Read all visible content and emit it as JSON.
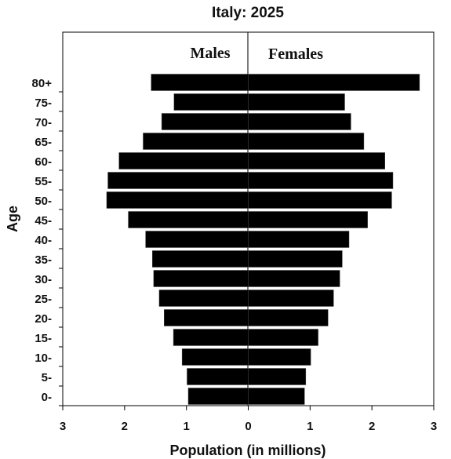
{
  "chart_data": {
    "type": "bar",
    "orientation": "horizontal",
    "layout": "population-pyramid",
    "title": "Italy: 2025",
    "xlabel": "Population (in millions)",
    "ylabel": "Age",
    "xlim": [
      -3,
      3
    ],
    "x_ticks": [
      -3,
      -2,
      -1,
      0,
      1,
      2,
      3
    ],
    "x_tick_labels": [
      "3",
      "2",
      "1",
      "0",
      "1",
      "2",
      "3"
    ],
    "categories": [
      "0-",
      "5-",
      "10-",
      "15-",
      "20-",
      "25-",
      "30-",
      "35-",
      "40-",
      "45-",
      "50-",
      "55-",
      "60-",
      "65-",
      "70-",
      "75-",
      "80+"
    ],
    "series": [
      {
        "name": "Males",
        "color": "#000000",
        "values": [
          0.97,
          0.99,
          1.07,
          1.21,
          1.36,
          1.44,
          1.53,
          1.55,
          1.66,
          1.94,
          2.29,
          2.27,
          2.09,
          1.7,
          1.4,
          1.2,
          1.57
        ]
      },
      {
        "name": "Females",
        "color": "#000000",
        "values": [
          0.91,
          0.93,
          1.01,
          1.13,
          1.29,
          1.38,
          1.48,
          1.52,
          1.63,
          1.93,
          2.32,
          2.34,
          2.21,
          1.87,
          1.66,
          1.56,
          2.77
        ]
      }
    ],
    "grid": false,
    "legend": "inside-top"
  }
}
